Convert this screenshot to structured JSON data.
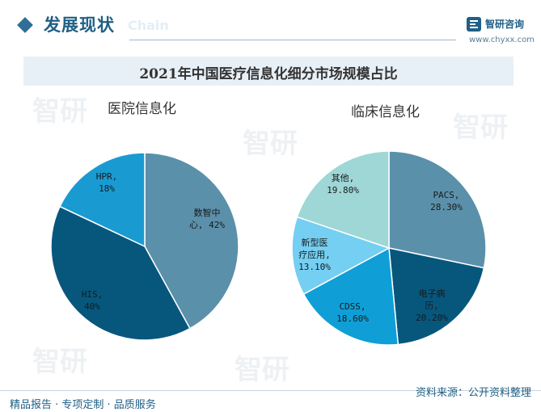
{
  "header": {
    "section_title": "发展现状",
    "section_ghost": "Chain",
    "brand_name": "智研咨询",
    "brand_url": "www.chyxx.com"
  },
  "chart_title": "2021年中国医疗信息化细分市场规模占比",
  "footer": {
    "tagline": "精品报告 · 专项定制 · 品质服务",
    "source": "资料来源：公开资料整理"
  },
  "watermark_text": "智研",
  "colors": {
    "brand": "#1f5f85",
    "title_bar": "#e8f0f7"
  },
  "chart_data": [
    {
      "type": "pie",
      "title": "医院信息化",
      "slices": [
        {
          "label": "数智中心",
          "value": 42,
          "display": "数智中心，42%",
          "color": "#5b90ab"
        },
        {
          "label": "HIS",
          "value": 40,
          "display": "HIS，40%",
          "color": "#07577d"
        },
        {
          "label": "HPR",
          "value": 18,
          "display": "HPR，18%",
          "color": "#199bd2"
        }
      ]
    },
    {
      "type": "pie",
      "title": "临床信息化",
      "slices": [
        {
          "label": "PACS",
          "value": 28.3,
          "display": "PACS，28.30%",
          "color": "#5b90ab"
        },
        {
          "label": "电子病历",
          "value": 20.2,
          "display": "电子病历，20.20%",
          "color": "#07577d"
        },
        {
          "label": "CDSS",
          "value": 18.6,
          "display": "CDSS，18.60%",
          "color": "#0f9fd6"
        },
        {
          "label": "新型医疗应用",
          "value": 13.1,
          "display": "新型医疗应用，13.10%",
          "color": "#74cff2"
        },
        {
          "label": "其他",
          "value": 19.8,
          "display": "其他，19.80%",
          "color": "#9ed7d6"
        }
      ]
    }
  ]
}
